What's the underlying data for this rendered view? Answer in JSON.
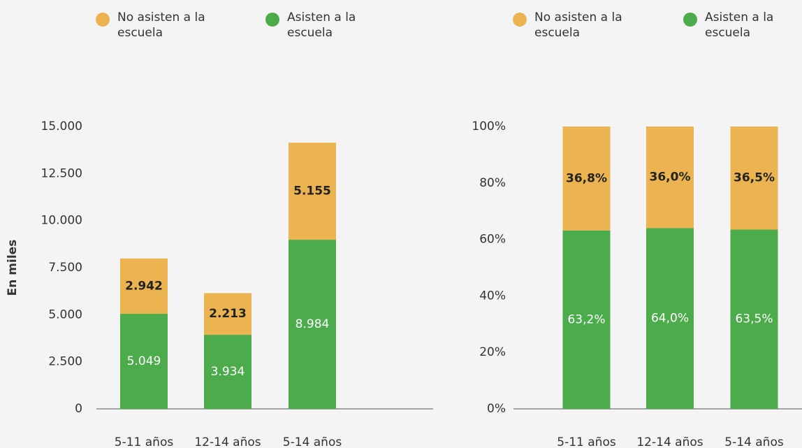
{
  "chart_data": [
    {
      "type": "stacked_bar",
      "ylabel": "En miles",
      "categories": [
        "5-11 años",
        "12-14 años",
        "5-14 años"
      ],
      "series": [
        {
          "name": "No asisten a la escuela",
          "color": "#ebb450",
          "values": [
            2942,
            2213,
            5155
          ],
          "value_labels": [
            "2.942",
            "2.213",
            "5.155"
          ]
        },
        {
          "name": "Asisten a la escuela",
          "color": "#4cac4c",
          "values": [
            5049,
            3934,
            8984
          ],
          "value_labels": [
            "5.049",
            "3.934",
            "8.984"
          ]
        }
      ],
      "ylim": [
        0,
        15000
      ],
      "yticks": [
        0,
        {
          "value": 2500,
          "label": "2.500"
        },
        {
          "value": 5000,
          "label": "5.000"
        },
        {
          "value": 7500,
          "label": "7.500"
        },
        {
          "value": 10000,
          "label": "10.000"
        },
        {
          "value": 12500,
          "label": "12.500"
        },
        {
          "value": 15000,
          "label": "15.000"
        }
      ]
    },
    {
      "type": "stacked_bar",
      "categories": [
        "5-11 años",
        "12-14 años",
        "5-14 años"
      ],
      "series": [
        {
          "name": "No asisten a la escuela",
          "color": "#ebb450",
          "values": [
            36.8,
            36.0,
            36.5
          ],
          "value_labels": [
            "36,8%",
            "36,0%",
            "36,5%"
          ]
        },
        {
          "name": "Asisten a la escuela",
          "color": "#4cac4c",
          "values": [
            63.2,
            64.0,
            63.5
          ],
          "value_labels": [
            "63,2%",
            "64,0%",
            "63,5%"
          ]
        }
      ],
      "ylim": [
        0,
        100
      ],
      "yticks": [
        {
          "value": 0,
          "label": "0%"
        },
        {
          "value": 20,
          "label": "20%"
        },
        {
          "value": 40,
          "label": "40%"
        },
        {
          "value": 60,
          "label": "60%"
        },
        {
          "value": 80,
          "label": "80%"
        },
        {
          "value": 100,
          "label": "100%"
        }
      ]
    }
  ]
}
